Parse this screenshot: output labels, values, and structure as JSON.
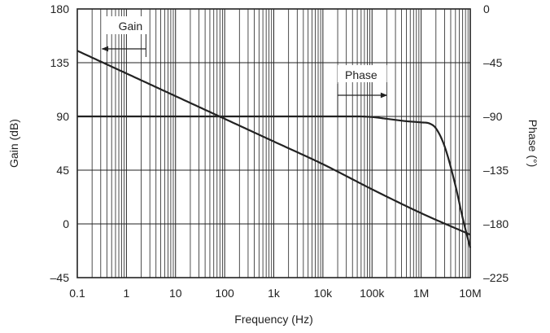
{
  "chart_data": {
    "type": "line",
    "title": "",
    "xlabel": "Frequency (Hz)",
    "ylabel_left": "Gain (dB)",
    "ylabel_right": "Phase (°)",
    "x_scale": "log",
    "xlim": [
      0.1,
      10000000
    ],
    "ylim_left": [
      -45,
      180
    ],
    "ylim_right": [
      -225,
      0
    ],
    "x_ticks": [
      0.1,
      1,
      10,
      100,
      1000,
      10000,
      100000,
      1000000,
      10000000
    ],
    "x_tick_labels": [
      "0.1",
      "1",
      "10",
      "100",
      "1k",
      "10k",
      "100k",
      "1M",
      "10M"
    ],
    "y_left_ticks": [
      -45,
      0,
      45,
      90,
      135,
      180
    ],
    "y_left_tick_labels": [
      "–45",
      "0",
      "45",
      "90",
      "135",
      "180"
    ],
    "y_right_ticks": [
      -225,
      -180,
      -135,
      -90,
      -45,
      0
    ],
    "y_right_tick_labels": [
      "–225",
      "–180",
      "–135",
      "–90",
      "–45",
      "0"
    ],
    "grid": true,
    "colors": {
      "line": "#222222",
      "grid": "#222222",
      "text": "#222222",
      "background": "#ffffff"
    },
    "series": [
      {
        "name": "Gain",
        "axis": "left",
        "x": [
          0.1,
          1,
          10,
          100,
          1000,
          10000,
          100000,
          1000000,
          10000000
        ],
        "y": [
          145,
          126,
          107,
          88,
          69,
          50,
          29,
          9,
          -9
        ]
      },
      {
        "name": "Phase",
        "axis": "right",
        "x": [
          0.1,
          1,
          10,
          100,
          1000,
          10000,
          50000,
          100000,
          200000,
          500000,
          1000000,
          1500000,
          2000000,
          3000000,
          5000000,
          7000000,
          10000000
        ],
        "y": [
          -90,
          -90,
          -90,
          -90,
          -90,
          -90,
          -90,
          -90.5,
          -92,
          -94,
          -95,
          -96,
          -100,
          -115,
          -148,
          -175,
          -200
        ]
      }
    ],
    "annotations": [
      {
        "text": "Gain",
        "arrow": "left",
        "series": "Gain"
      },
      {
        "text": "Phase",
        "arrow": "right",
        "series": "Phase"
      }
    ]
  }
}
